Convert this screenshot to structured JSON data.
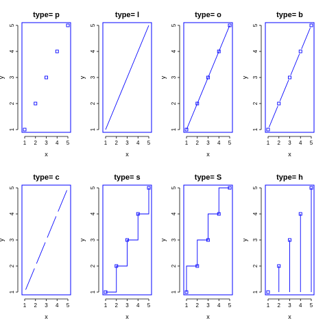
{
  "colors": {
    "series": "#0000ff",
    "axis": "#000000",
    "background": "#ffffff"
  },
  "chart_data": [
    {
      "type": "scatter",
      "plot_type": "p",
      "title": "type= p",
      "xlabel": "x",
      "ylabel": "y",
      "x": [
        1,
        2,
        3,
        4,
        5
      ],
      "y": [
        1,
        2,
        3,
        4,
        5
      ],
      "xlim": [
        1,
        5
      ],
      "ylim": [
        1,
        5
      ],
      "xticks": [
        "1",
        "2",
        "3",
        "4",
        "5"
      ],
      "yticks": [
        "1",
        "2",
        "3",
        "4",
        "5"
      ],
      "grid": false
    },
    {
      "type": "line",
      "plot_type": "l",
      "title": "type= l",
      "xlabel": "x",
      "ylabel": "y",
      "x": [
        1,
        2,
        3,
        4,
        5
      ],
      "y": [
        1,
        2,
        3,
        4,
        5
      ],
      "xlim": [
        1,
        5
      ],
      "ylim": [
        1,
        5
      ],
      "xticks": [
        "1",
        "2",
        "3",
        "4",
        "5"
      ],
      "yticks": [
        "1",
        "2",
        "3",
        "4",
        "5"
      ],
      "grid": false
    },
    {
      "type": "line",
      "plot_type": "o",
      "title": "type= o",
      "xlabel": "x",
      "ylabel": "y",
      "x": [
        1,
        2,
        3,
        4,
        5
      ],
      "y": [
        1,
        2,
        3,
        4,
        5
      ],
      "xlim": [
        1,
        5
      ],
      "ylim": [
        1,
        5
      ],
      "xticks": [
        "1",
        "2",
        "3",
        "4",
        "5"
      ],
      "yticks": [
        "1",
        "2",
        "3",
        "4",
        "5"
      ],
      "grid": false
    },
    {
      "type": "line",
      "plot_type": "b",
      "title": "type= b",
      "xlabel": "x",
      "ylabel": "y",
      "x": [
        1,
        2,
        3,
        4,
        5
      ],
      "y": [
        1,
        2,
        3,
        4,
        5
      ],
      "xlim": [
        1,
        5
      ],
      "ylim": [
        1,
        5
      ],
      "xticks": [
        "1",
        "2",
        "3",
        "4",
        "5"
      ],
      "yticks": [
        "1",
        "2",
        "3",
        "4",
        "5"
      ],
      "grid": false
    },
    {
      "type": "line",
      "plot_type": "c",
      "title": "type= c",
      "xlabel": "x",
      "ylabel": "y",
      "x": [
        1,
        2,
        3,
        4,
        5
      ],
      "y": [
        1,
        2,
        3,
        4,
        5
      ],
      "xlim": [
        1,
        5
      ],
      "ylim": [
        1,
        5
      ],
      "xticks": [
        "1",
        "2",
        "3",
        "4",
        "5"
      ],
      "yticks": [
        "1",
        "2",
        "3",
        "4",
        "5"
      ],
      "grid": false
    },
    {
      "type": "line",
      "plot_type": "s",
      "title": "type= s",
      "xlabel": "x",
      "ylabel": "y",
      "x": [
        1,
        2,
        3,
        4,
        5
      ],
      "y": [
        1,
        2,
        3,
        4,
        5
      ],
      "xlim": [
        1,
        5
      ],
      "ylim": [
        1,
        5
      ],
      "xticks": [
        "1",
        "2",
        "3",
        "4",
        "5"
      ],
      "yticks": [
        "1",
        "2",
        "3",
        "4",
        "5"
      ],
      "grid": false
    },
    {
      "type": "line",
      "plot_type": "S",
      "title": "type= S",
      "xlabel": "x",
      "ylabel": "y",
      "x": [
        1,
        2,
        3,
        4,
        5
      ],
      "y": [
        1,
        2,
        3,
        4,
        5
      ],
      "xlim": [
        1,
        5
      ],
      "ylim": [
        1,
        5
      ],
      "xticks": [
        "1",
        "2",
        "3",
        "4",
        "5"
      ],
      "yticks": [
        "1",
        "2",
        "3",
        "4",
        "5"
      ],
      "grid": false
    },
    {
      "type": "bar",
      "plot_type": "h",
      "title": "type= h",
      "xlabel": "x",
      "ylabel": "y",
      "x": [
        1,
        2,
        3,
        4,
        5
      ],
      "y": [
        1,
        2,
        3,
        4,
        5
      ],
      "xlim": [
        1,
        5
      ],
      "ylim": [
        1,
        5
      ],
      "xticks": [
        "1",
        "2",
        "3",
        "4",
        "5"
      ],
      "yticks": [
        "1",
        "2",
        "3",
        "4",
        "5"
      ],
      "grid": false
    }
  ]
}
